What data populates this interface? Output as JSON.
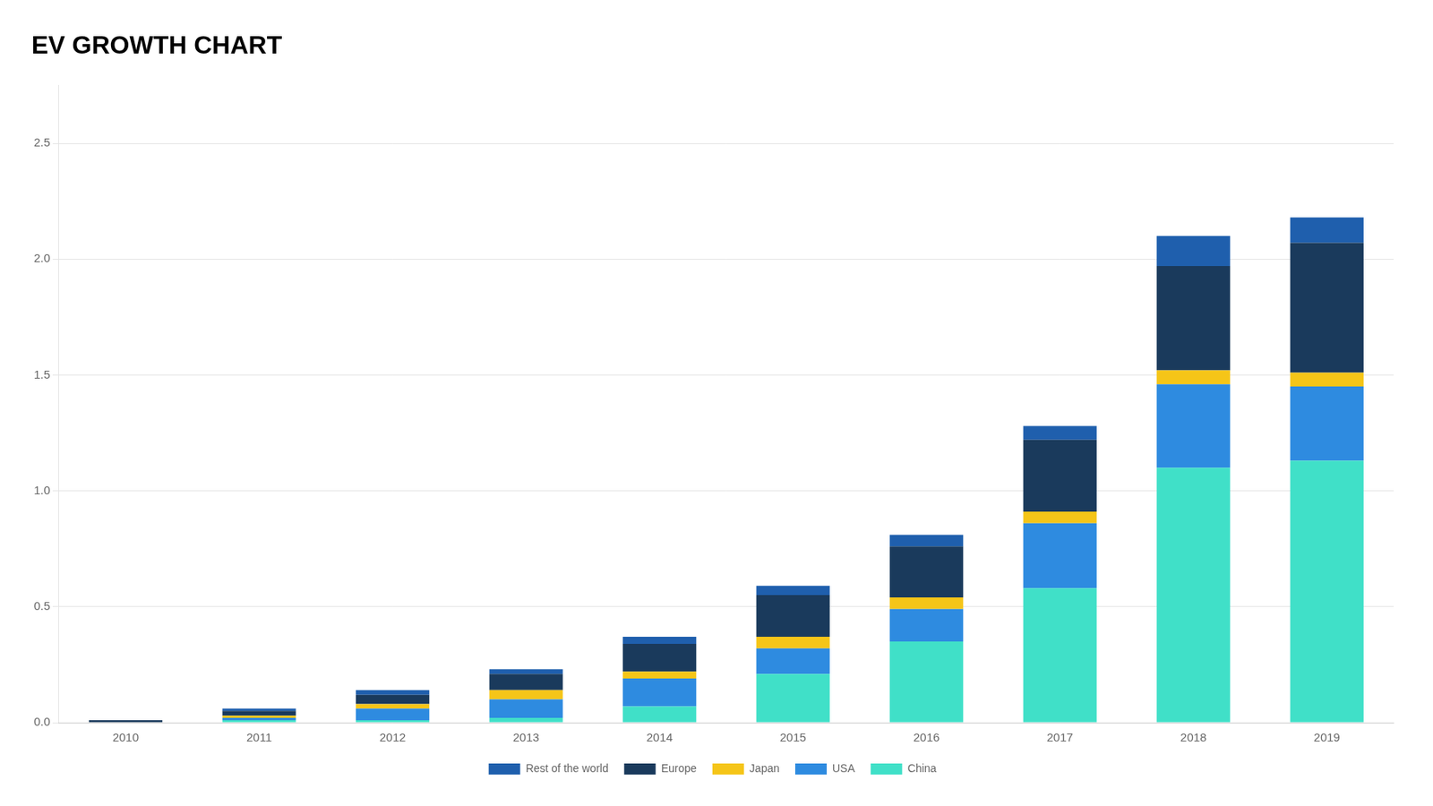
{
  "chart_data": {
    "type": "bar",
    "title": "EV GROWTH CHART",
    "categories": [
      "2010",
      "2011",
      "2012",
      "2013",
      "2014",
      "2015",
      "2016",
      "2017",
      "2018",
      "2019"
    ],
    "series": [
      {
        "name": "China",
        "color": "#40E0C8",
        "values": [
          0.0,
          0.01,
          0.01,
          0.02,
          0.07,
          0.21,
          0.35,
          0.58,
          1.1,
          1.13
        ]
      },
      {
        "name": "USA",
        "color": "#2E8BE0",
        "values": [
          0.0,
          0.01,
          0.05,
          0.08,
          0.12,
          0.11,
          0.14,
          0.28,
          0.36,
          0.32
        ]
      },
      {
        "name": "Japan",
        "color": "#F5C518",
        "values": [
          0.0,
          0.01,
          0.02,
          0.04,
          0.03,
          0.05,
          0.05,
          0.05,
          0.06,
          0.06
        ]
      },
      {
        "name": "Europe",
        "color": "#1A3A5C",
        "values": [
          0.01,
          0.02,
          0.04,
          0.07,
          0.12,
          0.18,
          0.22,
          0.31,
          0.45,
          0.56
        ]
      },
      {
        "name": "Rest of the world",
        "color": "#1F5FAD",
        "values": [
          0.0,
          0.01,
          0.02,
          0.02,
          0.03,
          0.04,
          0.05,
          0.06,
          0.13,
          0.11
        ]
      }
    ],
    "stacked": true,
    "ylim": [
      0,
      2.75
    ],
    "yticks": [
      {
        "value": 0.0,
        "label": "0.0"
      },
      0.5,
      {
        "value": 1.0,
        "label": "1.0"
      },
      1.5,
      {
        "value": 2.0,
        "label": "2.0"
      },
      2.5
    ],
    "grid": true,
    "legend": "bottom"
  }
}
